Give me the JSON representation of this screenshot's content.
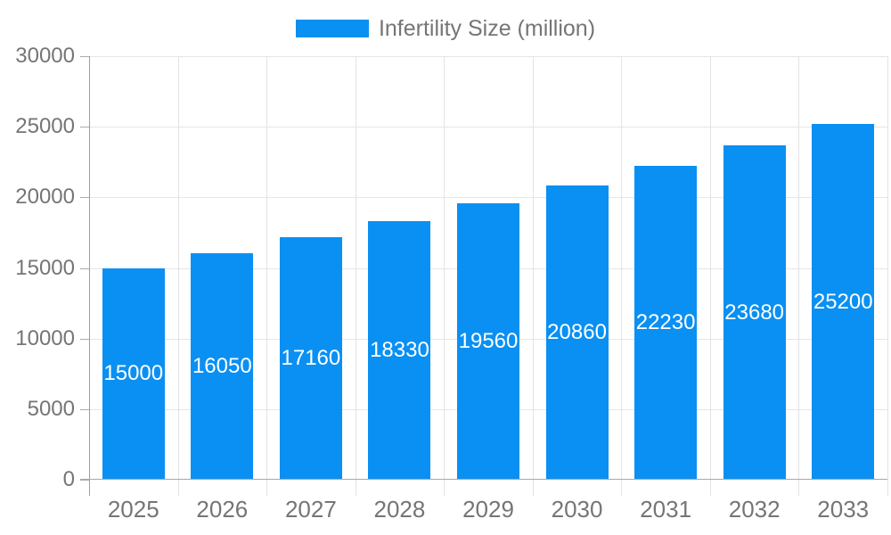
{
  "chart_data": {
    "type": "bar",
    "categories": [
      "2025",
      "2026",
      "2027",
      "2028",
      "2029",
      "2030",
      "2031",
      "2032",
      "2033"
    ],
    "series": [
      {
        "name": "Infertility Size (million)",
        "values": [
          15000,
          16050,
          17160,
          18330,
          19560,
          20860,
          22230,
          23680,
          25200
        ]
      }
    ],
    "title": "",
    "xlabel": "",
    "ylabel": "",
    "ylim": [
      0,
      30000
    ],
    "yticks": [
      0,
      5000,
      10000,
      15000,
      20000,
      25000,
      30000
    ],
    "grid": true,
    "legend_position": "top-center",
    "bar_labels_inside": true,
    "colors": {
      "bar": "#0a90f2",
      "bar_label_text": "#ffffff",
      "axis_text": "#757575",
      "grid_line": "#e6e6e6",
      "axis_line": "#a8a8a8",
      "background": "#ffffff"
    }
  }
}
